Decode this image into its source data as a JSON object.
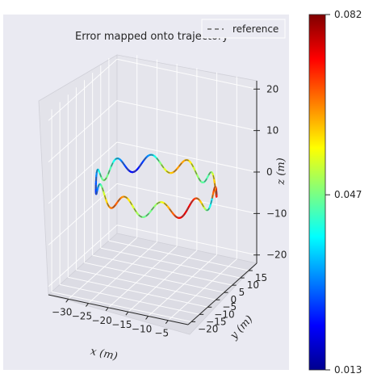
{
  "chart_data": {
    "type": "line",
    "projection": "3d",
    "title": "Error mapped onto trajectory",
    "xlabel": "x (m)",
    "ylabel": "y (m)",
    "zlabel": "z (m)",
    "x_ticks": [
      -30,
      -25,
      -20,
      -15,
      -10,
      -5
    ],
    "y_ticks": [
      -20,
      -15,
      -10,
      -5,
      0,
      5,
      10,
      15
    ],
    "z_ticks": [
      -20,
      -10,
      0,
      10,
      20
    ],
    "xlim": [
      -35,
      0
    ],
    "ylim": [
      -22,
      20
    ],
    "zlim": [
      -22,
      22
    ],
    "legend": {
      "entries": [
        "reference"
      ],
      "position": "top-right",
      "line_style": "dashed"
    },
    "trajectory": {
      "shape": "closed loop with sinusoidal undulation",
      "x_center": -17,
      "x_half_extent": 14,
      "y_center": 0,
      "y_half_extent": 14,
      "z_wave_amplitude": 2,
      "z_wave_cycles": 10
    },
    "colorbar": {
      "colormap": "jet",
      "min": 0.013,
      "max": 0.082,
      "tick_values": [
        0.013,
        0.047,
        0.082
      ],
      "tick_labels": [
        "0.013",
        "0.047",
        "0.082"
      ]
    },
    "grid": true
  }
}
